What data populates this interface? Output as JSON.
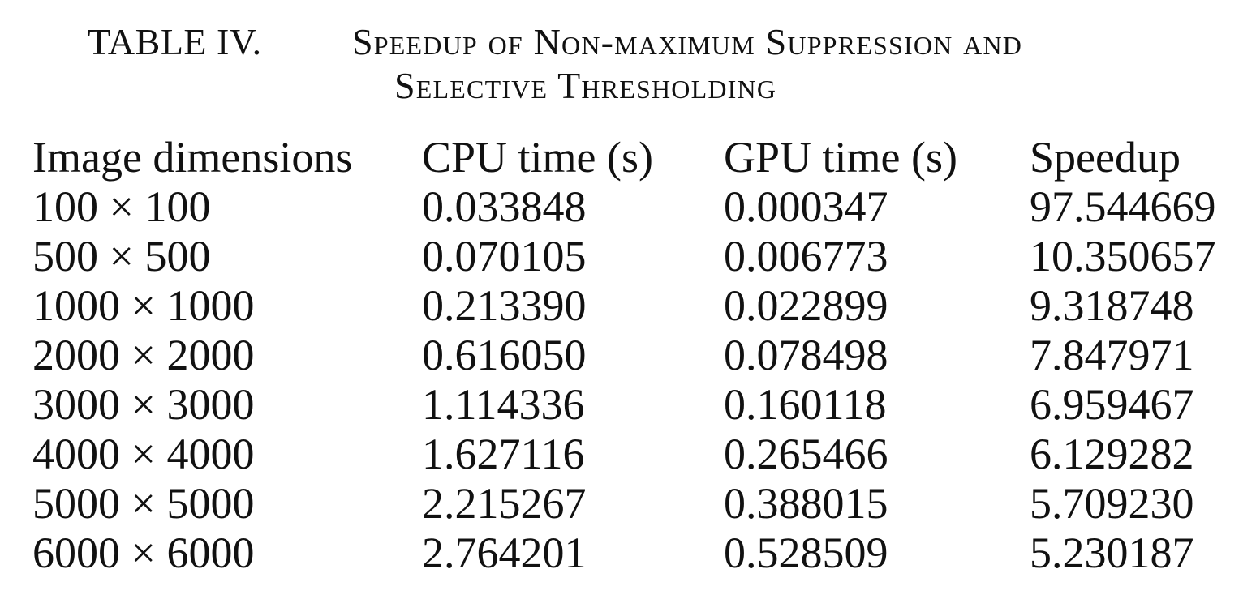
{
  "caption": {
    "label": "TABLE IV.",
    "line1": "Speedup of Non-maximum Suppression and",
    "line2": "Selective Thresholding"
  },
  "table": {
    "headers": [
      "Image dimensions",
      "CPU time (s)",
      "GPU time (s)",
      "Speedup"
    ],
    "rows": [
      [
        "100 × 100",
        "0.033848",
        "0.000347",
        "97.544669"
      ],
      [
        "500 × 500",
        "0.070105",
        "0.006773",
        "10.350657"
      ],
      [
        "1000 × 1000",
        "0.213390",
        "0.022899",
        "9.318748"
      ],
      [
        "2000 × 2000",
        "0.616050",
        "0.078498",
        "7.847971"
      ],
      [
        "3000 × 3000",
        "1.114336",
        "0.160118",
        "6.959467"
      ],
      [
        "4000 × 4000",
        "1.627116",
        "0.265466",
        "6.129282"
      ],
      [
        "5000 × 5000",
        "2.215267",
        "0.388015",
        "5.709230"
      ],
      [
        "6000 × 6000",
        "2.764201",
        "0.528509",
        "5.230187"
      ]
    ]
  }
}
